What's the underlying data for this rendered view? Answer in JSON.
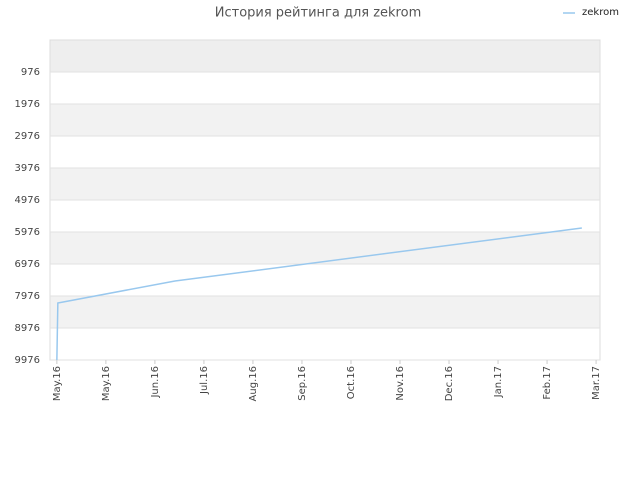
{
  "chart_data": {
    "type": "line",
    "title": "История рейтинга для zekrom",
    "x": [
      0,
      0.02,
      2.41,
      10.71
    ],
    "series": [
      {
        "name": "zekrom",
        "color": "#99c8ee",
        "values": [
          9976,
          8195,
          7507,
          5851
        ]
      }
    ],
    "xlim": [
      -0.14,
      11.08
    ],
    "xticks": [
      {
        "value": 0,
        "label": "May.16"
      },
      {
        "value": 1,
        "label": "May.16"
      },
      {
        "value": 2,
        "label": "Jun.16"
      },
      {
        "value": 3,
        "label": "Jul.16"
      },
      {
        "value": 4,
        "label": "Aug.16"
      },
      {
        "value": 5,
        "label": "Sep.16"
      },
      {
        "value": 6,
        "label": "Oct.16"
      },
      {
        "value": 7,
        "label": "Nov.16"
      },
      {
        "value": 8,
        "label": "Dec.16"
      },
      {
        "value": 9,
        "label": "Jan.17"
      },
      {
        "value": 10,
        "label": "Feb.17"
      },
      {
        "value": 11,
        "label": "Mar.17"
      }
    ],
    "ylim": [
      9976,
      -24
    ],
    "yticks": [
      976,
      1976,
      2976,
      3976,
      4976,
      5976,
      6976,
      7976,
      8976,
      9976
    ],
    "grid": true,
    "legend": "top-right"
  }
}
